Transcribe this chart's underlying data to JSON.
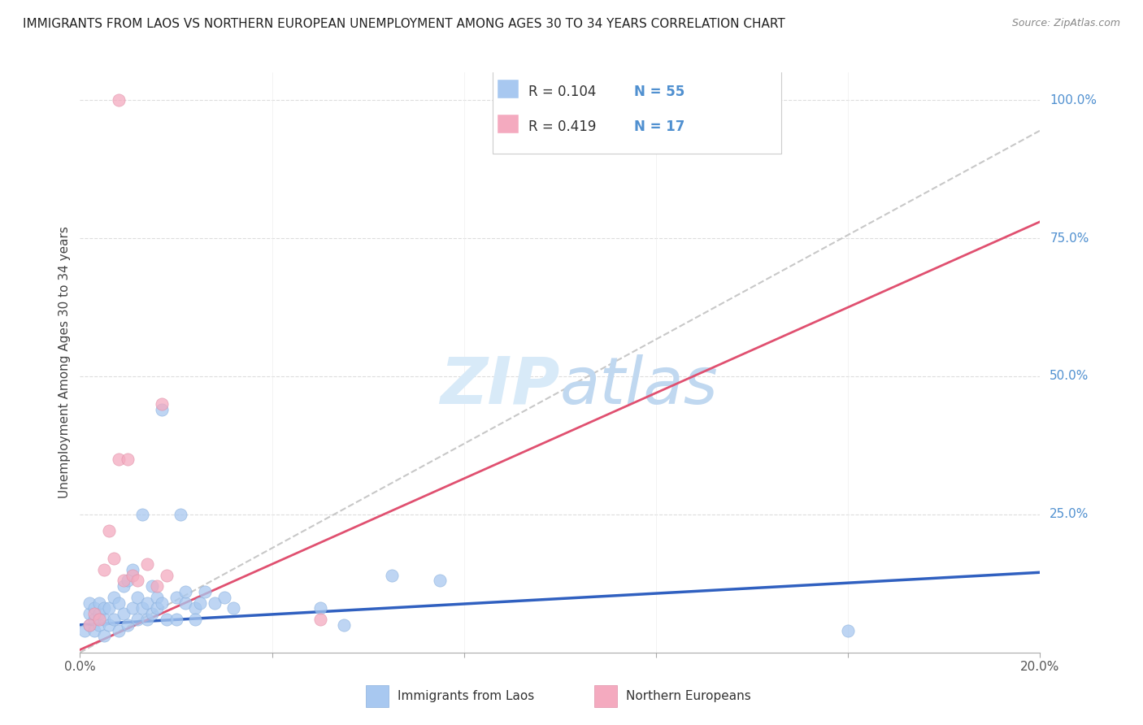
{
  "title": "IMMIGRANTS FROM LAOS VS NORTHERN EUROPEAN UNEMPLOYMENT AMONG AGES 30 TO 34 YEARS CORRELATION CHART",
  "source": "Source: ZipAtlas.com",
  "ylabel": "Unemployment Among Ages 30 to 34 years",
  "xlim": [
    0.0,
    0.2
  ],
  "ylim": [
    0.0,
    1.05
  ],
  "legend_blue_R": "R = 0.104",
  "legend_blue_N": "N = 55",
  "legend_pink_R": "R = 0.419",
  "legend_pink_N": "N = 17",
  "legend_label_blue": "Immigrants from Laos",
  "legend_label_pink": "Northern Europeans",
  "blue_color": "#A8C8F0",
  "pink_color": "#F4AABF",
  "blue_line_color": "#3060C0",
  "pink_line_color": "#E05070",
  "diag_line_color": "#C8C8C8",
  "right_label_color": "#5090D0",
  "watermark_color": "#D8EAF8",
  "blue_dots": [
    [
      0.001,
      0.04
    ],
    [
      0.002,
      0.05
    ],
    [
      0.002,
      0.07
    ],
    [
      0.002,
      0.09
    ],
    [
      0.003,
      0.06
    ],
    [
      0.003,
      0.04
    ],
    [
      0.003,
      0.08
    ],
    [
      0.004,
      0.05
    ],
    [
      0.004,
      0.07
    ],
    [
      0.004,
      0.09
    ],
    [
      0.005,
      0.06
    ],
    [
      0.005,
      0.08
    ],
    [
      0.005,
      0.03
    ],
    [
      0.006,
      0.05
    ],
    [
      0.006,
      0.08
    ],
    [
      0.007,
      0.1
    ],
    [
      0.007,
      0.06
    ],
    [
      0.008,
      0.09
    ],
    [
      0.008,
      0.04
    ],
    [
      0.009,
      0.12
    ],
    [
      0.009,
      0.07
    ],
    [
      0.01,
      0.13
    ],
    [
      0.01,
      0.05
    ],
    [
      0.011,
      0.08
    ],
    [
      0.011,
      0.15
    ],
    [
      0.012,
      0.1
    ],
    [
      0.012,
      0.06
    ],
    [
      0.013,
      0.25
    ],
    [
      0.013,
      0.08
    ],
    [
      0.014,
      0.09
    ],
    [
      0.014,
      0.06
    ],
    [
      0.015,
      0.12
    ],
    [
      0.015,
      0.07
    ],
    [
      0.016,
      0.1
    ],
    [
      0.016,
      0.08
    ],
    [
      0.017,
      0.44
    ],
    [
      0.017,
      0.09
    ],
    [
      0.018,
      0.06
    ],
    [
      0.02,
      0.1
    ],
    [
      0.02,
      0.06
    ],
    [
      0.021,
      0.25
    ],
    [
      0.022,
      0.09
    ],
    [
      0.022,
      0.11
    ],
    [
      0.024,
      0.08
    ],
    [
      0.024,
      0.06
    ],
    [
      0.025,
      0.09
    ],
    [
      0.026,
      0.11
    ],
    [
      0.028,
      0.09
    ],
    [
      0.03,
      0.1
    ],
    [
      0.032,
      0.08
    ],
    [
      0.05,
      0.08
    ],
    [
      0.055,
      0.05
    ],
    [
      0.065,
      0.14
    ],
    [
      0.075,
      0.13
    ],
    [
      0.16,
      0.04
    ]
  ],
  "pink_dots": [
    [
      0.002,
      0.05
    ],
    [
      0.003,
      0.07
    ],
    [
      0.004,
      0.06
    ],
    [
      0.005,
      0.15
    ],
    [
      0.006,
      0.22
    ],
    [
      0.007,
      0.17
    ],
    [
      0.008,
      0.35
    ],
    [
      0.009,
      0.13
    ],
    [
      0.01,
      0.35
    ],
    [
      0.011,
      0.14
    ],
    [
      0.012,
      0.13
    ],
    [
      0.014,
      0.16
    ],
    [
      0.016,
      0.12
    ],
    [
      0.017,
      0.45
    ],
    [
      0.018,
      0.14
    ],
    [
      0.05,
      0.06
    ],
    [
      0.008,
      1.0
    ]
  ],
  "blue_reg": [
    0.0,
    0.2,
    0.05,
    0.145
  ],
  "pink_reg": [
    0.0,
    0.2,
    0.005,
    0.78
  ],
  "diag_line": [
    0.0,
    0.2,
    0.0,
    0.945
  ]
}
